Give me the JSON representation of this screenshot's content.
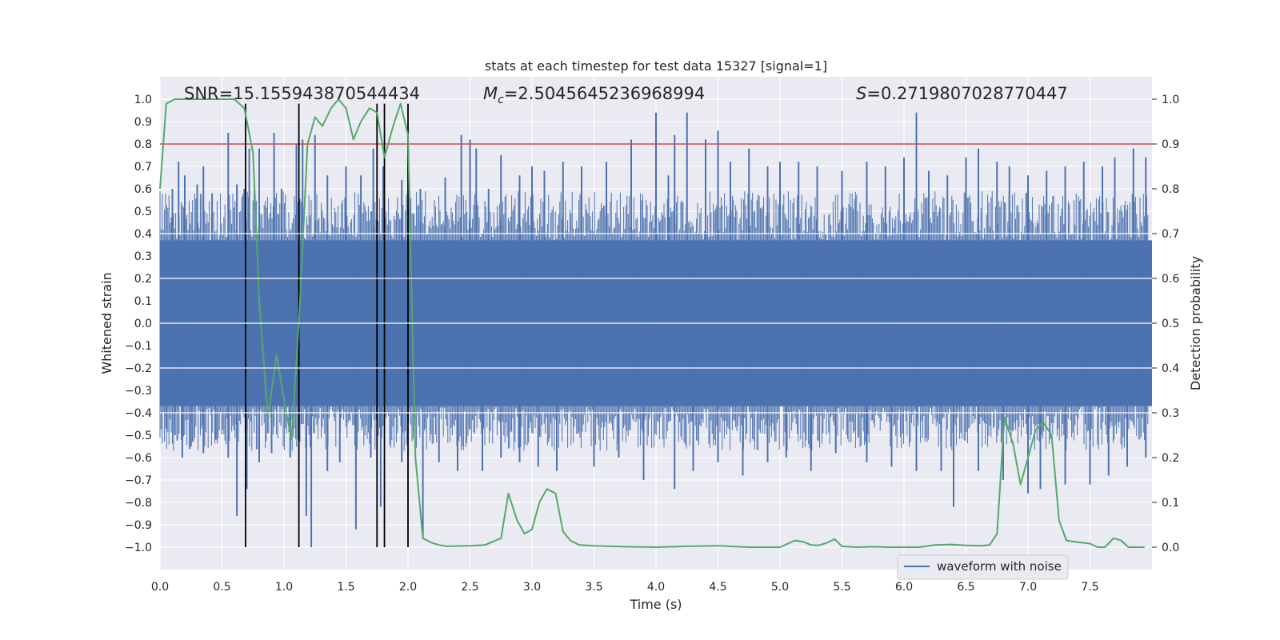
{
  "chart_data": {
    "type": "line",
    "title": "stats at each timestep for test data 15327 [signal=1]",
    "xlabel": "Time (s)",
    "ylabel": "Whitened strain",
    "y2label": "Detection probability",
    "xlim": [
      0.0,
      8.0
    ],
    "ylim": [
      -1.1,
      1.1
    ],
    "y2lim": [
      -0.05,
      1.05
    ],
    "xticks": [
      0.0,
      0.5,
      1.0,
      1.5,
      2.0,
      2.5,
      3.0,
      3.5,
      4.0,
      4.5,
      5.0,
      5.5,
      6.0,
      6.5,
      7.0,
      7.5
    ],
    "xtick_labels": [
      "0.0",
      "0.5",
      "1.0",
      "1.5",
      "2.0",
      "2.5",
      "3.0",
      "3.5",
      "4.0",
      "4.5",
      "5.0",
      "5.5",
      "6.0",
      "6.5",
      "7.0",
      "7.5"
    ],
    "yticks": [
      -1.0,
      -0.9,
      -0.8,
      -0.7,
      -0.6,
      -0.5,
      -0.4,
      -0.3,
      -0.2,
      -0.1,
      0.0,
      0.1,
      0.2,
      0.3,
      0.4,
      0.5,
      0.6,
      0.7,
      0.8,
      0.9,
      1.0
    ],
    "ytick_labels": [
      "−1.0",
      "−0.9",
      "−0.8",
      "−0.7",
      "−0.6",
      "−0.5",
      "−0.4",
      "−0.3",
      "−0.2",
      "−0.1",
      "0.0",
      "0.1",
      "0.2",
      "0.3",
      "0.4",
      "0.5",
      "0.6",
      "0.7",
      "0.8",
      "0.9",
      "1.0"
    ],
    "y2ticks": [
      0.0,
      0.1,
      0.2,
      0.3,
      0.4,
      0.5,
      0.6,
      0.7,
      0.8,
      0.9,
      1.0
    ],
    "y2tick_labels": [
      "0.0",
      "0.1",
      "0.2",
      "0.3",
      "0.4",
      "0.5",
      "0.6",
      "0.7",
      "0.8",
      "0.9",
      "1.0"
    ],
    "grid": true,
    "legend": {
      "position": "bottom-right",
      "entries": [
        "waveform with noise"
      ]
    },
    "annotations": {
      "snr_label": "SNR=15.155943870544434",
      "mc_label": "=2.5045645236968994",
      "mc_symbol": "M",
      "mc_sub": "c",
      "s_label": "=0.2719807028770447",
      "s_symbol": "S"
    },
    "threshold": 0.9,
    "vertical_lines_x": [
      0.69,
      1.12,
      1.75,
      1.81,
      2.0
    ],
    "vertical_lines_y": [
      -1.0,
      0.98
    ],
    "series": [
      {
        "name": "waveform with noise",
        "color": "#4c72b0",
        "envelope_half_width": 0.37,
        "spikes_positive": [
          [
            0.05,
            0.38
          ],
          [
            0.1,
            0.6
          ],
          [
            0.15,
            0.72
          ],
          [
            0.2,
            0.66
          ],
          [
            0.3,
            0.62
          ],
          [
            0.35,
            0.7
          ],
          [
            0.42,
            0.58
          ],
          [
            0.55,
            0.85
          ],
          [
            0.62,
            0.62
          ],
          [
            0.68,
            0.6
          ],
          [
            0.72,
            0.78
          ],
          [
            0.8,
            0.78
          ],
          [
            0.92,
            0.85
          ],
          [
            0.98,
            0.6
          ],
          [
            1.1,
            0.8
          ],
          [
            1.15,
            0.82
          ],
          [
            1.25,
            0.84
          ],
          [
            1.35,
            0.66
          ],
          [
            1.5,
            0.7
          ],
          [
            1.62,
            0.66
          ],
          [
            1.72,
            0.78
          ],
          [
            1.8,
            0.7
          ],
          [
            1.95,
            0.64
          ],
          [
            2.1,
            0.6
          ],
          [
            2.3,
            0.65
          ],
          [
            2.43,
            0.84
          ],
          [
            2.5,
            0.82
          ],
          [
            2.55,
            0.78
          ],
          [
            2.65,
            0.6
          ],
          [
            2.75,
            0.75
          ],
          [
            2.9,
            0.66
          ],
          [
            3.0,
            0.7
          ],
          [
            3.1,
            0.68
          ],
          [
            3.25,
            0.72
          ],
          [
            3.4,
            0.7
          ],
          [
            3.6,
            0.72
          ],
          [
            3.8,
            0.82
          ],
          [
            4.0,
            0.94
          ],
          [
            4.1,
            0.66
          ],
          [
            4.15,
            0.84
          ],
          [
            4.25,
            0.94
          ],
          [
            4.4,
            0.82
          ],
          [
            4.5,
            0.86
          ],
          [
            4.6,
            0.72
          ],
          [
            4.75,
            0.78
          ],
          [
            4.9,
            0.7
          ],
          [
            5.0,
            0.72
          ],
          [
            5.15,
            0.72
          ],
          [
            5.3,
            0.7
          ],
          [
            5.5,
            0.68
          ],
          [
            5.7,
            0.72
          ],
          [
            5.85,
            0.7
          ],
          [
            6.0,
            0.74
          ],
          [
            6.1,
            0.94
          ],
          [
            6.2,
            0.68
          ],
          [
            6.35,
            0.66
          ],
          [
            6.5,
            0.74
          ],
          [
            6.6,
            0.78
          ],
          [
            6.75,
            0.72
          ],
          [
            6.85,
            0.7
          ],
          [
            7.0,
            0.66
          ],
          [
            7.15,
            0.68
          ],
          [
            7.3,
            0.7
          ],
          [
            7.45,
            0.72
          ],
          [
            7.6,
            0.7
          ],
          [
            7.7,
            0.74
          ],
          [
            7.85,
            0.78
          ],
          [
            7.95,
            0.74
          ]
        ],
        "spikes_negative": [
          [
            0.05,
            -0.47
          ],
          [
            0.12,
            -0.5
          ],
          [
            0.18,
            -0.6
          ],
          [
            0.25,
            -0.55
          ],
          [
            0.35,
            -0.58
          ],
          [
            0.45,
            -0.52
          ],
          [
            0.55,
            -0.6
          ],
          [
            0.62,
            -0.86
          ],
          [
            0.7,
            -0.74
          ],
          [
            0.8,
            -0.62
          ],
          [
            0.9,
            -0.58
          ],
          [
            1.05,
            -0.6
          ],
          [
            1.18,
            -0.86
          ],
          [
            1.22,
            -1.0
          ],
          [
            1.35,
            -0.66
          ],
          [
            1.45,
            -0.62
          ],
          [
            1.58,
            -0.92
          ],
          [
            1.7,
            -0.6
          ],
          [
            1.78,
            -0.82
          ],
          [
            1.95,
            -0.62
          ],
          [
            2.12,
            -0.96
          ],
          [
            2.25,
            -0.62
          ],
          [
            2.4,
            -0.66
          ],
          [
            2.6,
            -0.66
          ],
          [
            2.75,
            -0.6
          ],
          [
            2.9,
            -0.62
          ],
          [
            3.05,
            -0.64
          ],
          [
            3.2,
            -0.66
          ],
          [
            3.5,
            -0.64
          ],
          [
            3.7,
            -0.6
          ],
          [
            3.9,
            -0.7
          ],
          [
            4.15,
            -0.74
          ],
          [
            4.3,
            -0.66
          ],
          [
            4.5,
            -0.62
          ],
          [
            4.7,
            -0.68
          ],
          [
            4.9,
            -0.62
          ],
          [
            5.05,
            -0.6
          ],
          [
            5.25,
            -0.66
          ],
          [
            5.45,
            -0.58
          ],
          [
            5.7,
            -0.62
          ],
          [
            5.9,
            -0.64
          ],
          [
            6.1,
            -0.66
          ],
          [
            6.3,
            -0.66
          ],
          [
            6.4,
            -0.82
          ],
          [
            6.6,
            -0.66
          ],
          [
            6.8,
            -0.7
          ],
          [
            7.0,
            -0.76
          ],
          [
            7.1,
            -0.74
          ],
          [
            7.3,
            -0.72
          ],
          [
            7.5,
            -0.72
          ],
          [
            7.65,
            -0.68
          ],
          [
            7.8,
            -0.64
          ],
          [
            7.95,
            -0.6
          ]
        ]
      },
      {
        "name": "",
        "color": "#55a868",
        "axis": "right",
        "x": [
          0.0,
          0.05,
          0.12,
          0.3,
          0.5,
          0.6,
          0.68,
          0.75,
          0.8,
          0.87,
          0.94,
          1.0,
          1.06,
          1.12,
          1.19,
          1.25,
          1.31,
          1.38,
          1.44,
          1.5,
          1.56,
          1.62,
          1.69,
          1.75,
          1.81,
          1.88,
          1.94,
          2.0,
          2.06,
          2.12,
          2.19,
          2.25,
          2.31,
          2.5,
          2.62,
          2.75,
          2.81,
          2.88,
          2.94,
          3.0,
          3.06,
          3.12,
          3.19,
          3.25,
          3.31,
          3.38,
          3.5,
          3.75,
          4.0,
          4.25,
          4.5,
          4.75,
          5.0,
          5.12,
          5.19,
          5.25,
          5.31,
          5.38,
          5.44,
          5.5,
          5.62,
          5.75,
          5.88,
          6.0,
          6.12,
          6.25,
          6.38,
          6.5,
          6.62,
          6.69,
          6.75,
          6.81,
          6.88,
          6.94,
          7.0,
          7.06,
          7.12,
          7.19,
          7.25,
          7.31,
          7.38,
          7.5,
          7.56,
          7.62,
          7.69,
          7.75,
          7.81,
          7.94
        ],
        "y": [
          0.8,
          0.99,
          1.0,
          1.0,
          1.0,
          1.0,
          0.98,
          0.88,
          0.55,
          0.29,
          0.43,
          0.33,
          0.24,
          0.5,
          0.9,
          0.96,
          0.94,
          0.98,
          1.0,
          0.98,
          0.91,
          0.95,
          0.98,
          0.97,
          0.87,
          0.94,
          0.99,
          0.92,
          0.2,
          0.02,
          0.01,
          0.005,
          0.002,
          0.003,
          0.005,
          0.02,
          0.12,
          0.06,
          0.03,
          0.04,
          0.1,
          0.13,
          0.12,
          0.035,
          0.015,
          0.005,
          0.003,
          0.001,
          0.0,
          0.002,
          0.003,
          0.0,
          0.0,
          0.015,
          0.012,
          0.005,
          0.004,
          0.01,
          0.018,
          0.002,
          0.0,
          0.001,
          0.0,
          0.0,
          0.0,
          0.005,
          0.006,
          0.004,
          0.003,
          0.005,
          0.03,
          0.29,
          0.23,
          0.14,
          0.2,
          0.26,
          0.28,
          0.25,
          0.06,
          0.015,
          0.012,
          0.008,
          0.0,
          0.0,
          0.02,
          0.015,
          0.0,
          0.0
        ]
      }
    ]
  }
}
